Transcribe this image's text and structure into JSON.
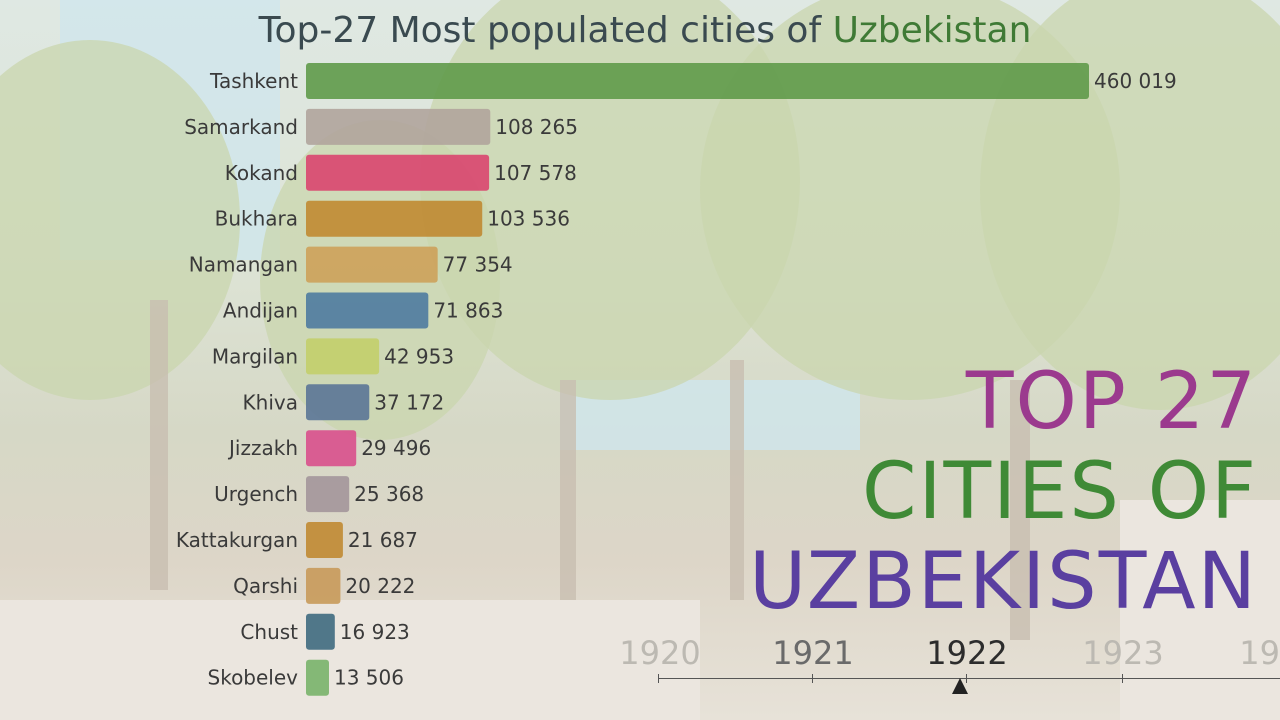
{
  "title": {
    "prefix": "Top-27 Most populated cities of ",
    "highlight": "Uzbekistan"
  },
  "overlay": {
    "line1": "TOP 27",
    "line2": "CITIES OF",
    "line3": "UZBEKISTAN"
  },
  "timeline": {
    "years": [
      "1920",
      "1921",
      "1922",
      "1923",
      "19"
    ],
    "current": "1922"
  },
  "chart_data": {
    "type": "bar",
    "orientation": "horizontal",
    "title": "Top-27 Most populated cities of Uzbekistan",
    "categories": [
      "Tashkent",
      "Samarkand",
      "Kokand",
      "Bukhara",
      "Namangan",
      "Andijan",
      "Margilan",
      "Khiva",
      "Jizzakh",
      "Urgench",
      "Kattakurgan",
      "Qarshi",
      "Chust",
      "Skobelev"
    ],
    "values": [
      460019,
      108265,
      107578,
      103536,
      77354,
      71863,
      42953,
      37172,
      29496,
      25368,
      21687,
      20222,
      16923,
      13506
    ],
    "value_labels": [
      "460 019",
      "108 265",
      "107 578",
      "103 536",
      "77 354",
      "71 863",
      "42 953",
      "37 172",
      "29 496",
      "25 368",
      "21 687",
      "20 222",
      "16 923",
      "13 506"
    ],
    "colors": [
      "#5f9a4a",
      "#b0a49c",
      "#d9456f",
      "#c08a32",
      "#cda15a",
      "#4f7ba0",
      "#c3cf6a",
      "#5b7696",
      "#d9508c",
      "#a3969a",
      "#c08a32",
      "#c89a5a",
      "#3f6a80",
      "#79b36a"
    ],
    "xlim": [
      0,
      460019
    ]
  }
}
